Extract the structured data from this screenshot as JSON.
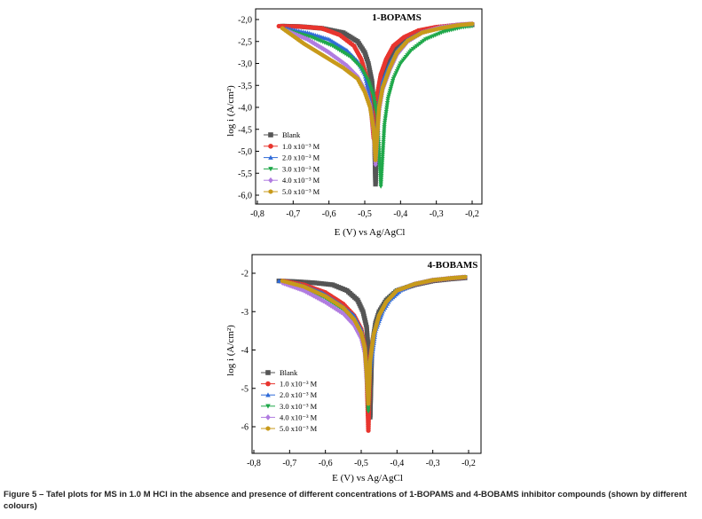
{
  "caption": "Figure 5 – Tafel plots for MS in 1.0 M HCl in the absence and presence of different concentrations of 1-BOPAMS and 4-BOBAMS inhibitor compounds (shown by different colours)",
  "colors": {
    "blank": "#555555",
    "c1": "#e8352e",
    "c2": "#2f6bd8",
    "c3": "#1fa84a",
    "c4": "#b07ce0",
    "c5": "#c89a1a"
  },
  "chart_data": [
    {
      "type": "line",
      "title": "1-BOPAMS",
      "xlabel": "E (V) vs Ag/AgCl",
      "ylabel": "log i (A/cm²)",
      "xlim": [
        -0.8,
        -0.2
      ],
      "ylim": [
        -6.0,
        -2.0
      ],
      "xticks": [
        -0.8,
        -0.7,
        -0.6,
        -0.5,
        -0.4,
        -0.3,
        -0.2
      ],
      "xtick_labels": [
        "-0,8",
        "-0,7",
        "-0,6",
        "-0,5",
        "-0,4",
        "-0,3",
        "-0,2"
      ],
      "yticks": [
        -2.0,
        -2.5,
        -3.0,
        -3.5,
        -4.0,
        -4.5,
        -5.0,
        -5.5,
        -6.0
      ],
      "ytick_labels": [
        "-2,0",
        "-2,5",
        "-3,0",
        "-3,5",
        "-4,0",
        "-4,5",
        "-5,0",
        "-5,5",
        "-6,0"
      ],
      "legend_position": "lower-left",
      "series": [
        {
          "name": "Blank",
          "marker": "square",
          "color_key": "blank",
          "x": [
            -0.73,
            -0.68,
            -0.62,
            -0.56,
            -0.52,
            -0.5,
            -0.49,
            -0.48,
            -0.475,
            -0.47,
            -0.465,
            -0.455,
            -0.44,
            -0.42,
            -0.39,
            -0.35,
            -0.3,
            -0.25,
            -0.2
          ],
          "y": [
            -2.15,
            -2.16,
            -2.2,
            -2.3,
            -2.5,
            -2.75,
            -3.0,
            -3.4,
            -3.9,
            -5.75,
            -3.8,
            -3.3,
            -3.0,
            -2.7,
            -2.45,
            -2.3,
            -2.2,
            -2.15,
            -2.12
          ]
        },
        {
          "name": "1.0 x10⁻³ M",
          "marker": "circle",
          "color_key": "c1",
          "x": [
            -0.74,
            -0.68,
            -0.62,
            -0.57,
            -0.53,
            -0.51,
            -0.495,
            -0.485,
            -0.475,
            -0.465,
            -0.455,
            -0.44,
            -0.42,
            -0.39,
            -0.35,
            -0.3,
            -0.25,
            -0.2
          ],
          "y": [
            -2.15,
            -2.16,
            -2.2,
            -2.35,
            -2.6,
            -2.9,
            -3.3,
            -3.8,
            -4.7,
            -3.7,
            -3.25,
            -2.9,
            -2.6,
            -2.4,
            -2.25,
            -2.17,
            -2.13,
            -2.1
          ]
        },
        {
          "name": "2.0 x10⁻³ M",
          "marker": "triangle-up",
          "color_key": "c2",
          "x": [
            -0.72,
            -0.66,
            -0.6,
            -0.55,
            -0.52,
            -0.5,
            -0.49,
            -0.48,
            -0.47,
            -0.46,
            -0.45,
            -0.43,
            -0.41,
            -0.38,
            -0.34,
            -0.29,
            -0.24,
            -0.2
          ],
          "y": [
            -2.2,
            -2.3,
            -2.45,
            -2.7,
            -2.95,
            -3.25,
            -3.6,
            -4.1,
            -4.9,
            -3.9,
            -3.4,
            -3.0,
            -2.7,
            -2.45,
            -2.28,
            -2.18,
            -2.12,
            -2.1
          ]
        },
        {
          "name": "3.0 x10⁻³ M",
          "marker": "triangle-down",
          "color_key": "c3",
          "x": [
            -0.72,
            -0.65,
            -0.59,
            -0.54,
            -0.51,
            -0.49,
            -0.475,
            -0.465,
            -0.455,
            -0.445,
            -0.435,
            -0.42,
            -0.4,
            -0.37,
            -0.33,
            -0.28,
            -0.23,
            -0.2
          ],
          "y": [
            -2.25,
            -2.4,
            -2.6,
            -2.85,
            -3.1,
            -3.4,
            -3.75,
            -4.2,
            -5.8,
            -4.4,
            -3.8,
            -3.35,
            -3.0,
            -2.7,
            -2.45,
            -2.28,
            -2.18,
            -2.15
          ]
        },
        {
          "name": "4.0 x10⁻³ M",
          "marker": "diamond",
          "color_key": "c4",
          "x": [
            -0.72,
            -0.66,
            -0.6,
            -0.55,
            -0.52,
            -0.5,
            -0.485,
            -0.475,
            -0.47,
            -0.46,
            -0.45,
            -0.43,
            -0.41,
            -0.38,
            -0.34,
            -0.29,
            -0.24,
            -0.2
          ],
          "y": [
            -2.25,
            -2.45,
            -2.75,
            -3.05,
            -3.3,
            -3.6,
            -3.95,
            -4.6,
            -5.3,
            -4.1,
            -3.6,
            -3.15,
            -2.8,
            -2.5,
            -2.3,
            -2.18,
            -2.12,
            -2.1
          ]
        },
        {
          "name": "5.0 x10⁻³ M",
          "marker": "hexagon",
          "color_key": "c5",
          "x": [
            -0.73,
            -0.67,
            -0.61,
            -0.56,
            -0.52,
            -0.5,
            -0.485,
            -0.475,
            -0.47,
            -0.46,
            -0.45,
            -0.43,
            -0.41,
            -0.38,
            -0.34,
            -0.29,
            -0.24,
            -0.2
          ],
          "y": [
            -2.2,
            -2.55,
            -2.85,
            -3.1,
            -3.35,
            -3.65,
            -4.0,
            -4.5,
            -5.2,
            -4.0,
            -3.55,
            -3.1,
            -2.75,
            -2.48,
            -2.3,
            -2.2,
            -2.13,
            -2.1
          ]
        }
      ]
    },
    {
      "type": "line",
      "title": "4-BOBAMS",
      "xlabel": "E (V) vs Ag/AgCl",
      "ylabel": "log i (A/cm²)",
      "xlim": [
        -0.8,
        -0.2
      ],
      "ylim": [
        -6.0,
        -2.0
      ],
      "xticks": [
        -0.8,
        -0.7,
        -0.6,
        -0.5,
        -0.4,
        -0.3,
        -0.2
      ],
      "xtick_labels": [
        "-0,8",
        "-0,7",
        "-0,6",
        "-0,5",
        "-0,4",
        "-0,3",
        "-0,2"
      ],
      "yticks": [
        -2,
        -3,
        -4,
        -5,
        -6
      ],
      "ytick_labels": [
        "-2",
        "-3",
        "-4",
        "-5",
        "-6"
      ],
      "legend_position": "lower-left",
      "series": [
        {
          "name": "Blank",
          "marker": "square",
          "color_key": "blank",
          "x": [
            -0.73,
            -0.68,
            -0.63,
            -0.58,
            -0.54,
            -0.51,
            -0.495,
            -0.485,
            -0.48,
            -0.475,
            -0.47,
            -0.46,
            -0.45,
            -0.43,
            -0.4,
            -0.35,
            -0.3,
            -0.25,
            -0.21
          ],
          "y": [
            -2.2,
            -2.22,
            -2.25,
            -2.3,
            -2.45,
            -2.7,
            -3.0,
            -3.4,
            -4.0,
            -5.75,
            -3.9,
            -3.3,
            -3.0,
            -2.7,
            -2.45,
            -2.3,
            -2.2,
            -2.15,
            -2.12
          ]
        },
        {
          "name": "1.0 x10⁻³ M",
          "marker": "circle",
          "color_key": "c1",
          "x": [
            -0.72,
            -0.66,
            -0.6,
            -0.55,
            -0.52,
            -0.5,
            -0.49,
            -0.485,
            -0.48,
            -0.475,
            -0.465,
            -0.45,
            -0.43,
            -0.4,
            -0.35,
            -0.3,
            -0.25,
            -0.21
          ],
          "y": [
            -2.2,
            -2.3,
            -2.5,
            -2.8,
            -3.1,
            -3.45,
            -3.9,
            -4.5,
            -6.1,
            -4.2,
            -3.6,
            -3.1,
            -2.75,
            -2.45,
            -2.28,
            -2.18,
            -2.13,
            -2.1
          ]
        },
        {
          "name": "2.0 x10⁻³ M",
          "marker": "triangle-up",
          "color_key": "c2",
          "x": [
            -0.73,
            -0.67,
            -0.61,
            -0.56,
            -0.52,
            -0.5,
            -0.49,
            -0.485,
            -0.48,
            -0.47,
            -0.46,
            -0.44,
            -0.42,
            -0.39,
            -0.35,
            -0.3,
            -0.25,
            -0.21
          ],
          "y": [
            -2.2,
            -2.3,
            -2.5,
            -2.8,
            -3.1,
            -3.45,
            -3.9,
            -4.5,
            -4.9,
            -4.2,
            -3.5,
            -3.0,
            -2.7,
            -2.45,
            -2.28,
            -2.18,
            -2.13,
            -2.1
          ]
        },
        {
          "name": "3.0 x10⁻³ M",
          "marker": "triangle-down",
          "color_key": "c3",
          "x": [
            -0.72,
            -0.66,
            -0.6,
            -0.55,
            -0.52,
            -0.5,
            -0.49,
            -0.485,
            -0.48,
            -0.475,
            -0.465,
            -0.45,
            -0.43,
            -0.4,
            -0.35,
            -0.3,
            -0.25,
            -0.21
          ],
          "y": [
            -2.25,
            -2.4,
            -2.65,
            -2.95,
            -3.25,
            -3.6,
            -4.0,
            -4.6,
            -5.6,
            -4.3,
            -3.6,
            -3.1,
            -2.75,
            -2.45,
            -2.28,
            -2.18,
            -2.13,
            -2.1
          ]
        },
        {
          "name": "4.0 x10⁻³ M",
          "marker": "diamond",
          "color_key": "c4",
          "x": [
            -0.72,
            -0.66,
            -0.6,
            -0.55,
            -0.52,
            -0.5,
            -0.49,
            -0.485,
            -0.48,
            -0.475,
            -0.465,
            -0.45,
            -0.43,
            -0.4,
            -0.35,
            -0.3,
            -0.25,
            -0.21
          ],
          "y": [
            -2.25,
            -2.45,
            -2.75,
            -3.05,
            -3.35,
            -3.7,
            -4.1,
            -4.8,
            -5.3,
            -4.3,
            -3.6,
            -3.1,
            -2.75,
            -2.45,
            -2.28,
            -2.18,
            -2.13,
            -2.1
          ]
        },
        {
          "name": "5.0 x10⁻³ M",
          "marker": "hexagon",
          "color_key": "c5",
          "x": [
            -0.72,
            -0.66,
            -0.6,
            -0.55,
            -0.52,
            -0.5,
            -0.49,
            -0.485,
            -0.48,
            -0.475,
            -0.465,
            -0.45,
            -0.43,
            -0.4,
            -0.35,
            -0.3,
            -0.25,
            -0.21
          ],
          "y": [
            -2.2,
            -2.35,
            -2.6,
            -2.9,
            -3.2,
            -3.55,
            -3.95,
            -4.6,
            -5.4,
            -4.3,
            -3.6,
            -3.1,
            -2.75,
            -2.45,
            -2.28,
            -2.18,
            -2.13,
            -2.1
          ]
        }
      ]
    }
  ]
}
